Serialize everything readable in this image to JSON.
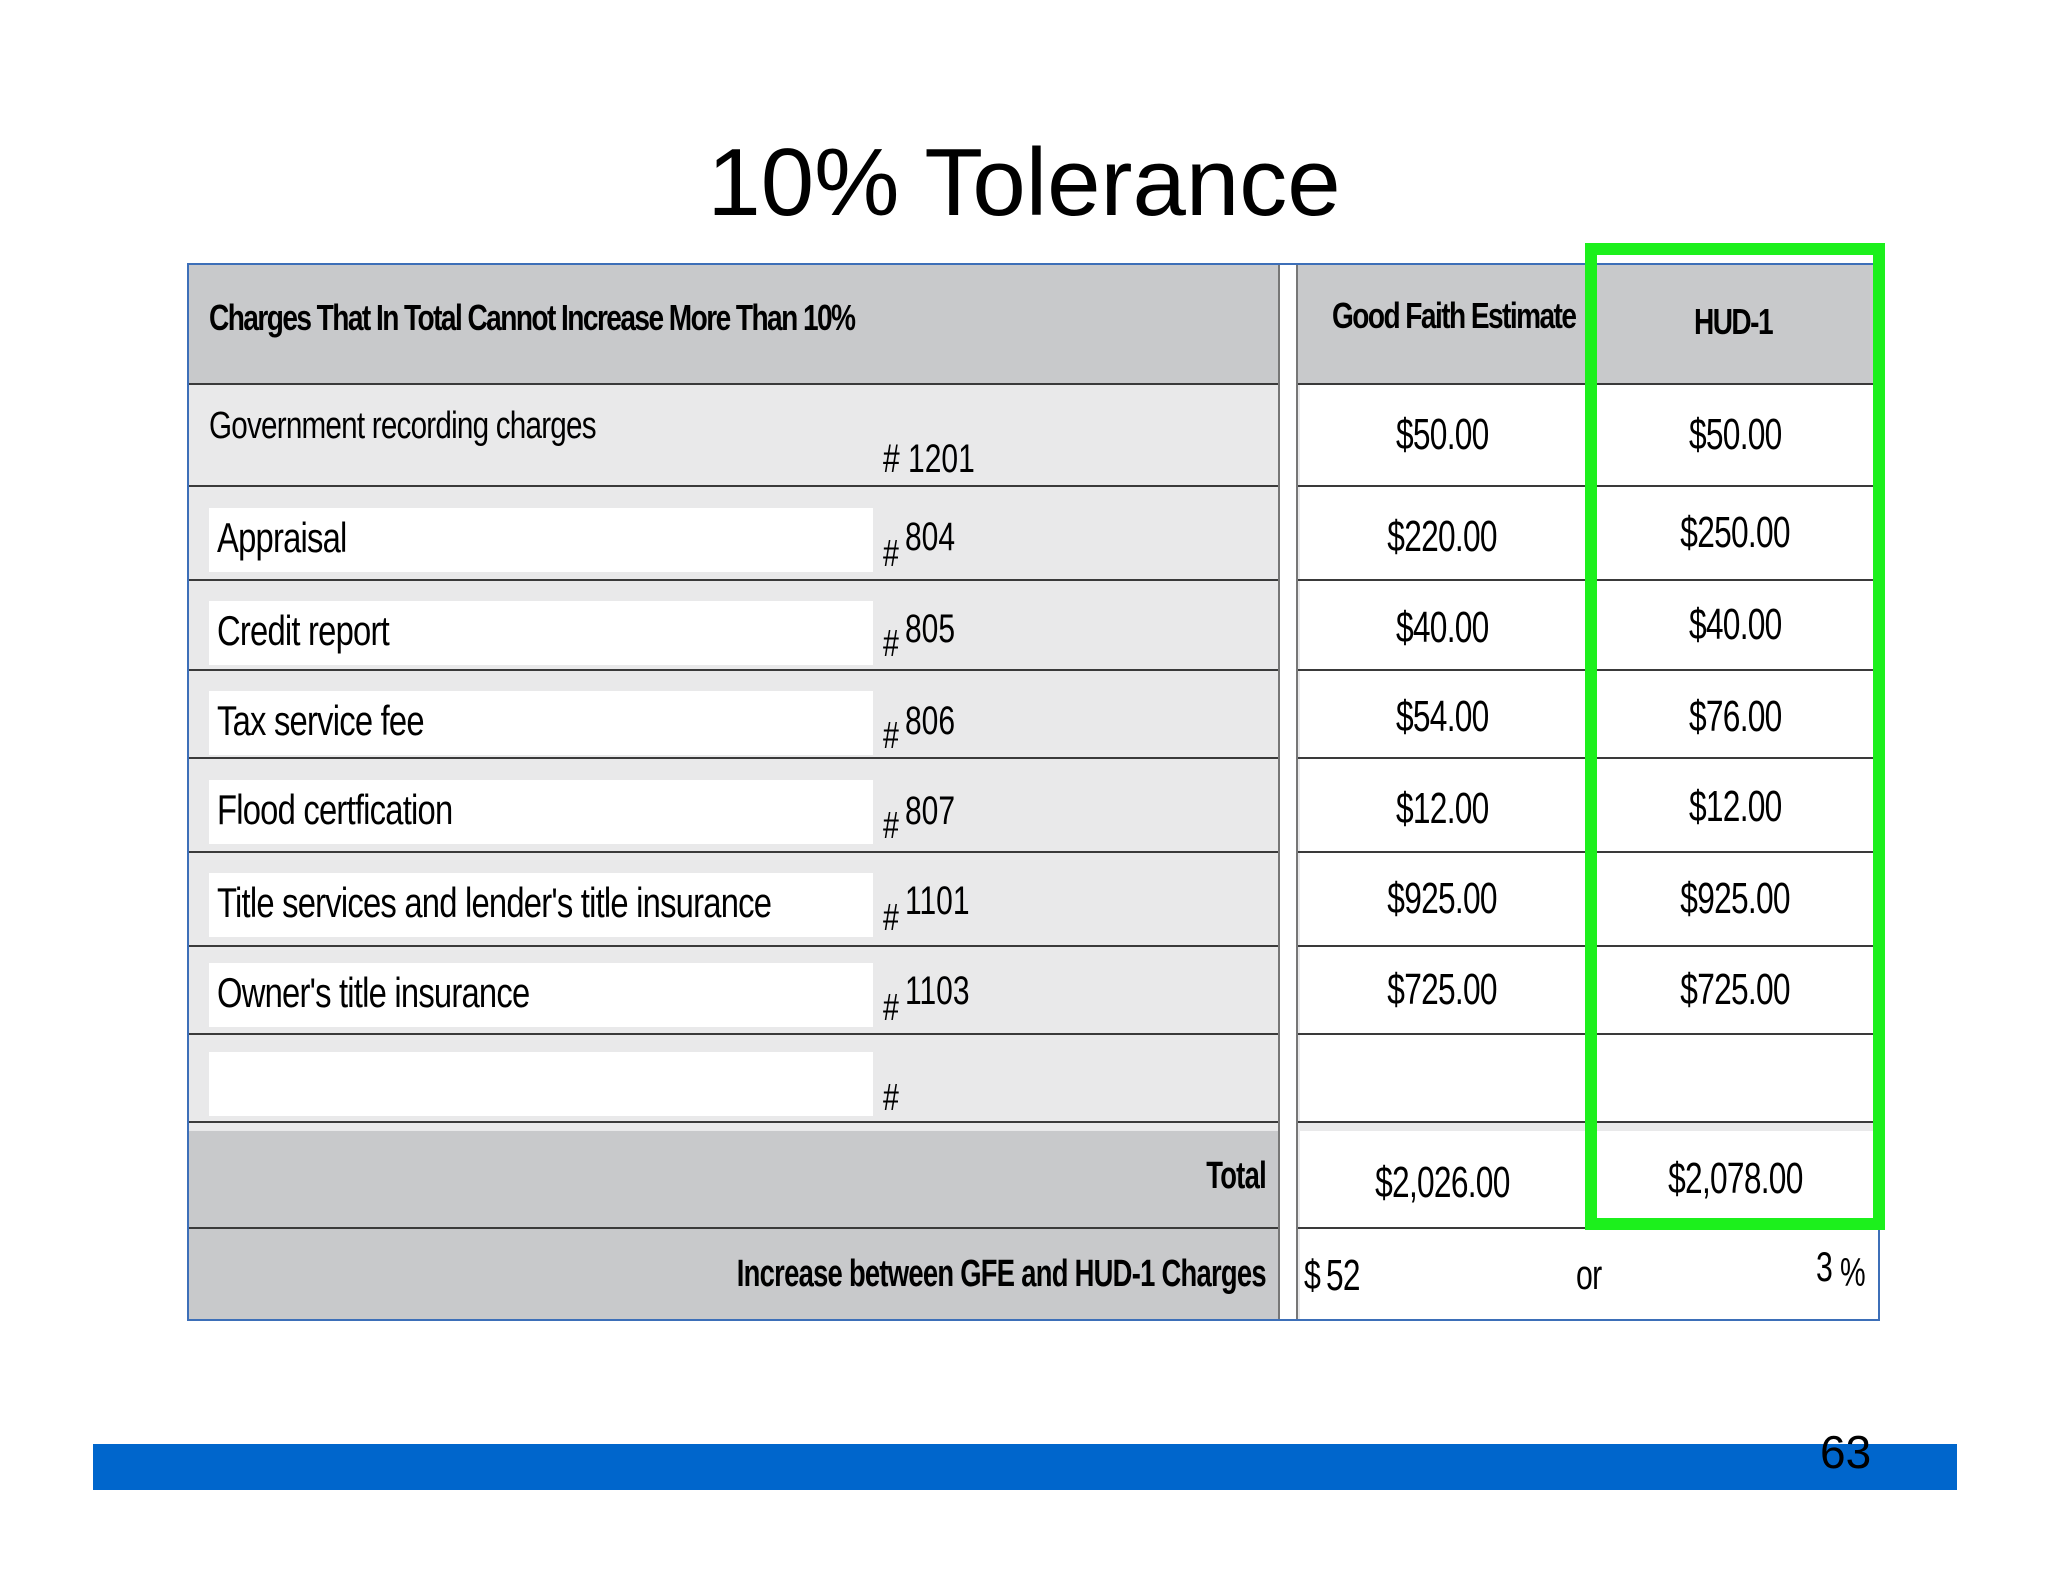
{
  "title": "10% Tolerance",
  "table": {
    "header": {
      "charges": "Charges That In Total Cannot Increase More Than 10%",
      "gfe": "Good Faith Estimate",
      "hud": "HUD-1"
    },
    "government": {
      "label": "Government recording charges",
      "line": "# 1201",
      "gfe": "$50.00",
      "hud": "$50.00"
    },
    "rows": [
      {
        "label": "Appraisal",
        "hash": "#",
        "line": "804",
        "gfe": "$220.00",
        "hud": "$250.00"
      },
      {
        "label": "Credit report",
        "hash": "#",
        "line": "805",
        "gfe": "$40.00",
        "hud": "$40.00"
      },
      {
        "label": "Tax service fee",
        "hash": "#",
        "line": "806",
        "gfe": "$54.00",
        "hud": "$76.00"
      },
      {
        "label": "Flood certfication",
        "hash": "#",
        "line": "807",
        "gfe": "$12.00",
        "hud": "$12.00"
      },
      {
        "label": "Title services and lender's title insurance",
        "hash": "#",
        "line": "1101",
        "gfe": "$925.00",
        "hud": "$925.00"
      },
      {
        "label": "Owner's title insurance",
        "hash": "#",
        "line": "1103",
        "gfe": "$725.00",
        "hud": "$725.00"
      },
      {
        "label": "",
        "hash": "#",
        "line": "",
        "gfe": "",
        "hud": ""
      }
    ],
    "total": {
      "label": "Total",
      "gfe": "$2,026.00",
      "hud": "$2,078.00"
    },
    "increase": {
      "label": "Increase between GFE and HUD-1 Charges",
      "dollar_sign": "$",
      "amount": "52",
      "or": "or",
      "percent": "3",
      "percent_sign": "%"
    }
  },
  "page_number": "63",
  "colors": {
    "highlight": "#1cf01c",
    "footer_bar": "#0066cc",
    "table_border": "#3d6fb8"
  }
}
